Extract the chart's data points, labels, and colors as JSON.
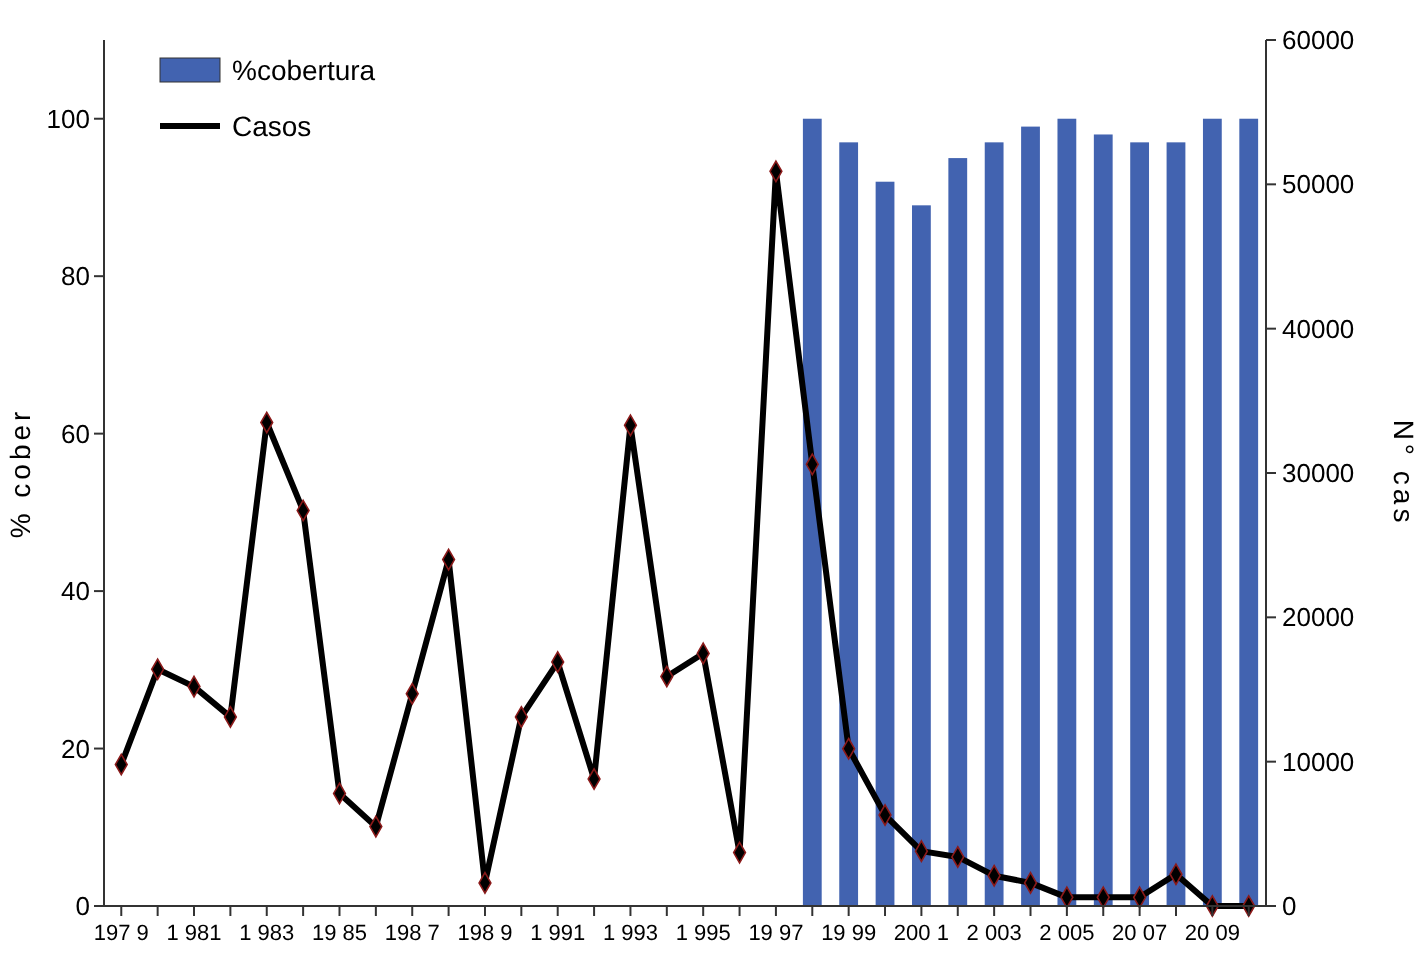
{
  "chart_data": {
    "type": "bar",
    "ylabel": "% cober",
    "y2label": "N° cas",
    "categories": [
      "197 9",
      null,
      "1 981",
      null,
      "1 983",
      null,
      "19 85",
      null,
      "198 7",
      null,
      "198 9",
      null,
      "1 991",
      null,
      "1 993",
      null,
      "1 995",
      null,
      "19 97",
      null,
      "19 99",
      null,
      "200 1",
      null,
      "2 003",
      null,
      "2 005",
      null,
      "20 07",
      null,
      "20 09",
      null
    ],
    "series": [
      {
        "name": "%cobertura",
        "color": "#4263b0",
        "values": [
          null,
          null,
          null,
          null,
          null,
          null,
          null,
          null,
          null,
          null,
          null,
          null,
          null,
          null,
          null,
          null,
          null,
          null,
          null,
          100,
          97,
          92,
          89,
          95,
          97,
          99,
          100,
          98,
          97,
          97,
          100,
          100
        ]
      },
      {
        "name": "Casos",
        "type": "line",
        "axis": "y2",
        "color": "#000000",
        "values": [
          9800,
          16400,
          15200,
          13100,
          33500,
          27400,
          7800,
          5500,
          14700,
          24000,
          1600,
          13100,
          16900,
          8800,
          33300,
          15900,
          17500,
          3700,
          50900,
          30600,
          10900,
          6300,
          3800,
          3400,
          2100,
          1600,
          600,
          600,
          600,
          2200,
          0,
          0
        ]
      }
    ],
    "ylim": [
      0,
      110
    ],
    "yticks": [
      0,
      20,
      40,
      60,
      80,
      100
    ],
    "y2lim": [
      0,
      60000
    ],
    "y2ticks": [
      0,
      10000,
      20000,
      30000,
      40000,
      50000,
      60000
    ],
    "legend": "top left",
    "marker": "diamond",
    "grid": false
  }
}
